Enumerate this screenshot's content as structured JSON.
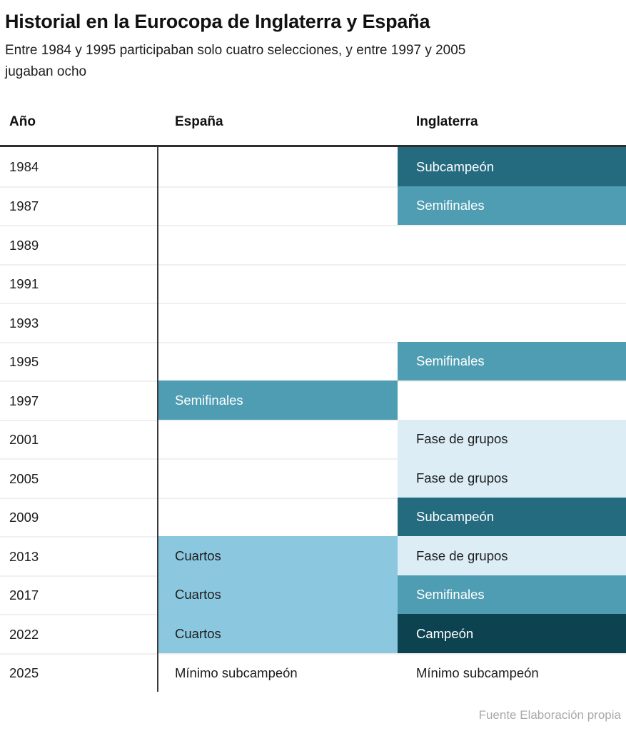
{
  "title": "Historial en la Eurocopa de Inglaterra y España",
  "subtitle": "Entre 1984 y 1995 participaban solo cuatro selecciones, y entre 1997 y 2005 jugaban ocho",
  "source": "Fuente Elaboración propia",
  "chart_data": {
    "type": "table",
    "columns": [
      "Año",
      "España",
      "Inglaterra"
    ],
    "legend_note": "cell background encodes round reached",
    "palette": {
      "campeon": {
        "bg": "#0d4351",
        "fg": "#ffffff"
      },
      "subcampeon": {
        "bg": "#256b80",
        "fg": "#ffffff"
      },
      "semifinales": {
        "bg": "#4f9db3",
        "fg": "#ffffff"
      },
      "cuartos": {
        "bg": "#8bc8e0",
        "fg": "#1d1d1d"
      },
      "fase_de_grupos": {
        "bg": "#dcedf5",
        "fg": "#1d1d1d"
      },
      "none": {
        "bg": null,
        "fg": "#1d1d1d"
      }
    },
    "rows": [
      {
        "year": "1984",
        "spain": {
          "text": "",
          "level": "none"
        },
        "england": {
          "text": "Subcampeón",
          "level": "subcampeon"
        }
      },
      {
        "year": "1987",
        "spain": {
          "text": "",
          "level": "none"
        },
        "england": {
          "text": "Semifinales",
          "level": "semifinales"
        }
      },
      {
        "year": "1989",
        "spain": {
          "text": "",
          "level": "none"
        },
        "england": {
          "text": "",
          "level": "none"
        }
      },
      {
        "year": "1991",
        "spain": {
          "text": "",
          "level": "none"
        },
        "england": {
          "text": "",
          "level": "none"
        }
      },
      {
        "year": "1993",
        "spain": {
          "text": "",
          "level": "none"
        },
        "england": {
          "text": "",
          "level": "none"
        }
      },
      {
        "year": "1995",
        "spain": {
          "text": "",
          "level": "none"
        },
        "england": {
          "text": "Semifinales",
          "level": "semifinales"
        }
      },
      {
        "year": "1997",
        "spain": {
          "text": "Semifinales",
          "level": "semifinales"
        },
        "england": {
          "text": "",
          "level": "none"
        }
      },
      {
        "year": "2001",
        "spain": {
          "text": "",
          "level": "none"
        },
        "england": {
          "text": "Fase de grupos",
          "level": "fase_de_grupos"
        }
      },
      {
        "year": "2005",
        "spain": {
          "text": "",
          "level": "none"
        },
        "england": {
          "text": "Fase de grupos",
          "level": "fase_de_grupos"
        }
      },
      {
        "year": "2009",
        "spain": {
          "text": "",
          "level": "none"
        },
        "england": {
          "text": "Subcampeón",
          "level": "subcampeon"
        }
      },
      {
        "year": "2013",
        "spain": {
          "text": "Cuartos",
          "level": "cuartos"
        },
        "england": {
          "text": "Fase de grupos",
          "level": "fase_de_grupos"
        }
      },
      {
        "year": "2017",
        "spain": {
          "text": "Cuartos",
          "level": "cuartos"
        },
        "england": {
          "text": "Semifinales",
          "level": "semifinales"
        }
      },
      {
        "year": "2022",
        "spain": {
          "text": "Cuartos",
          "level": "cuartos"
        },
        "england": {
          "text": "Campeón",
          "level": "campeon"
        }
      },
      {
        "year": "2025",
        "spain": {
          "text": "Mínimo subcampeón",
          "level": "none"
        },
        "england": {
          "text": "Mínimo subcampeón",
          "level": "none"
        }
      }
    ]
  }
}
